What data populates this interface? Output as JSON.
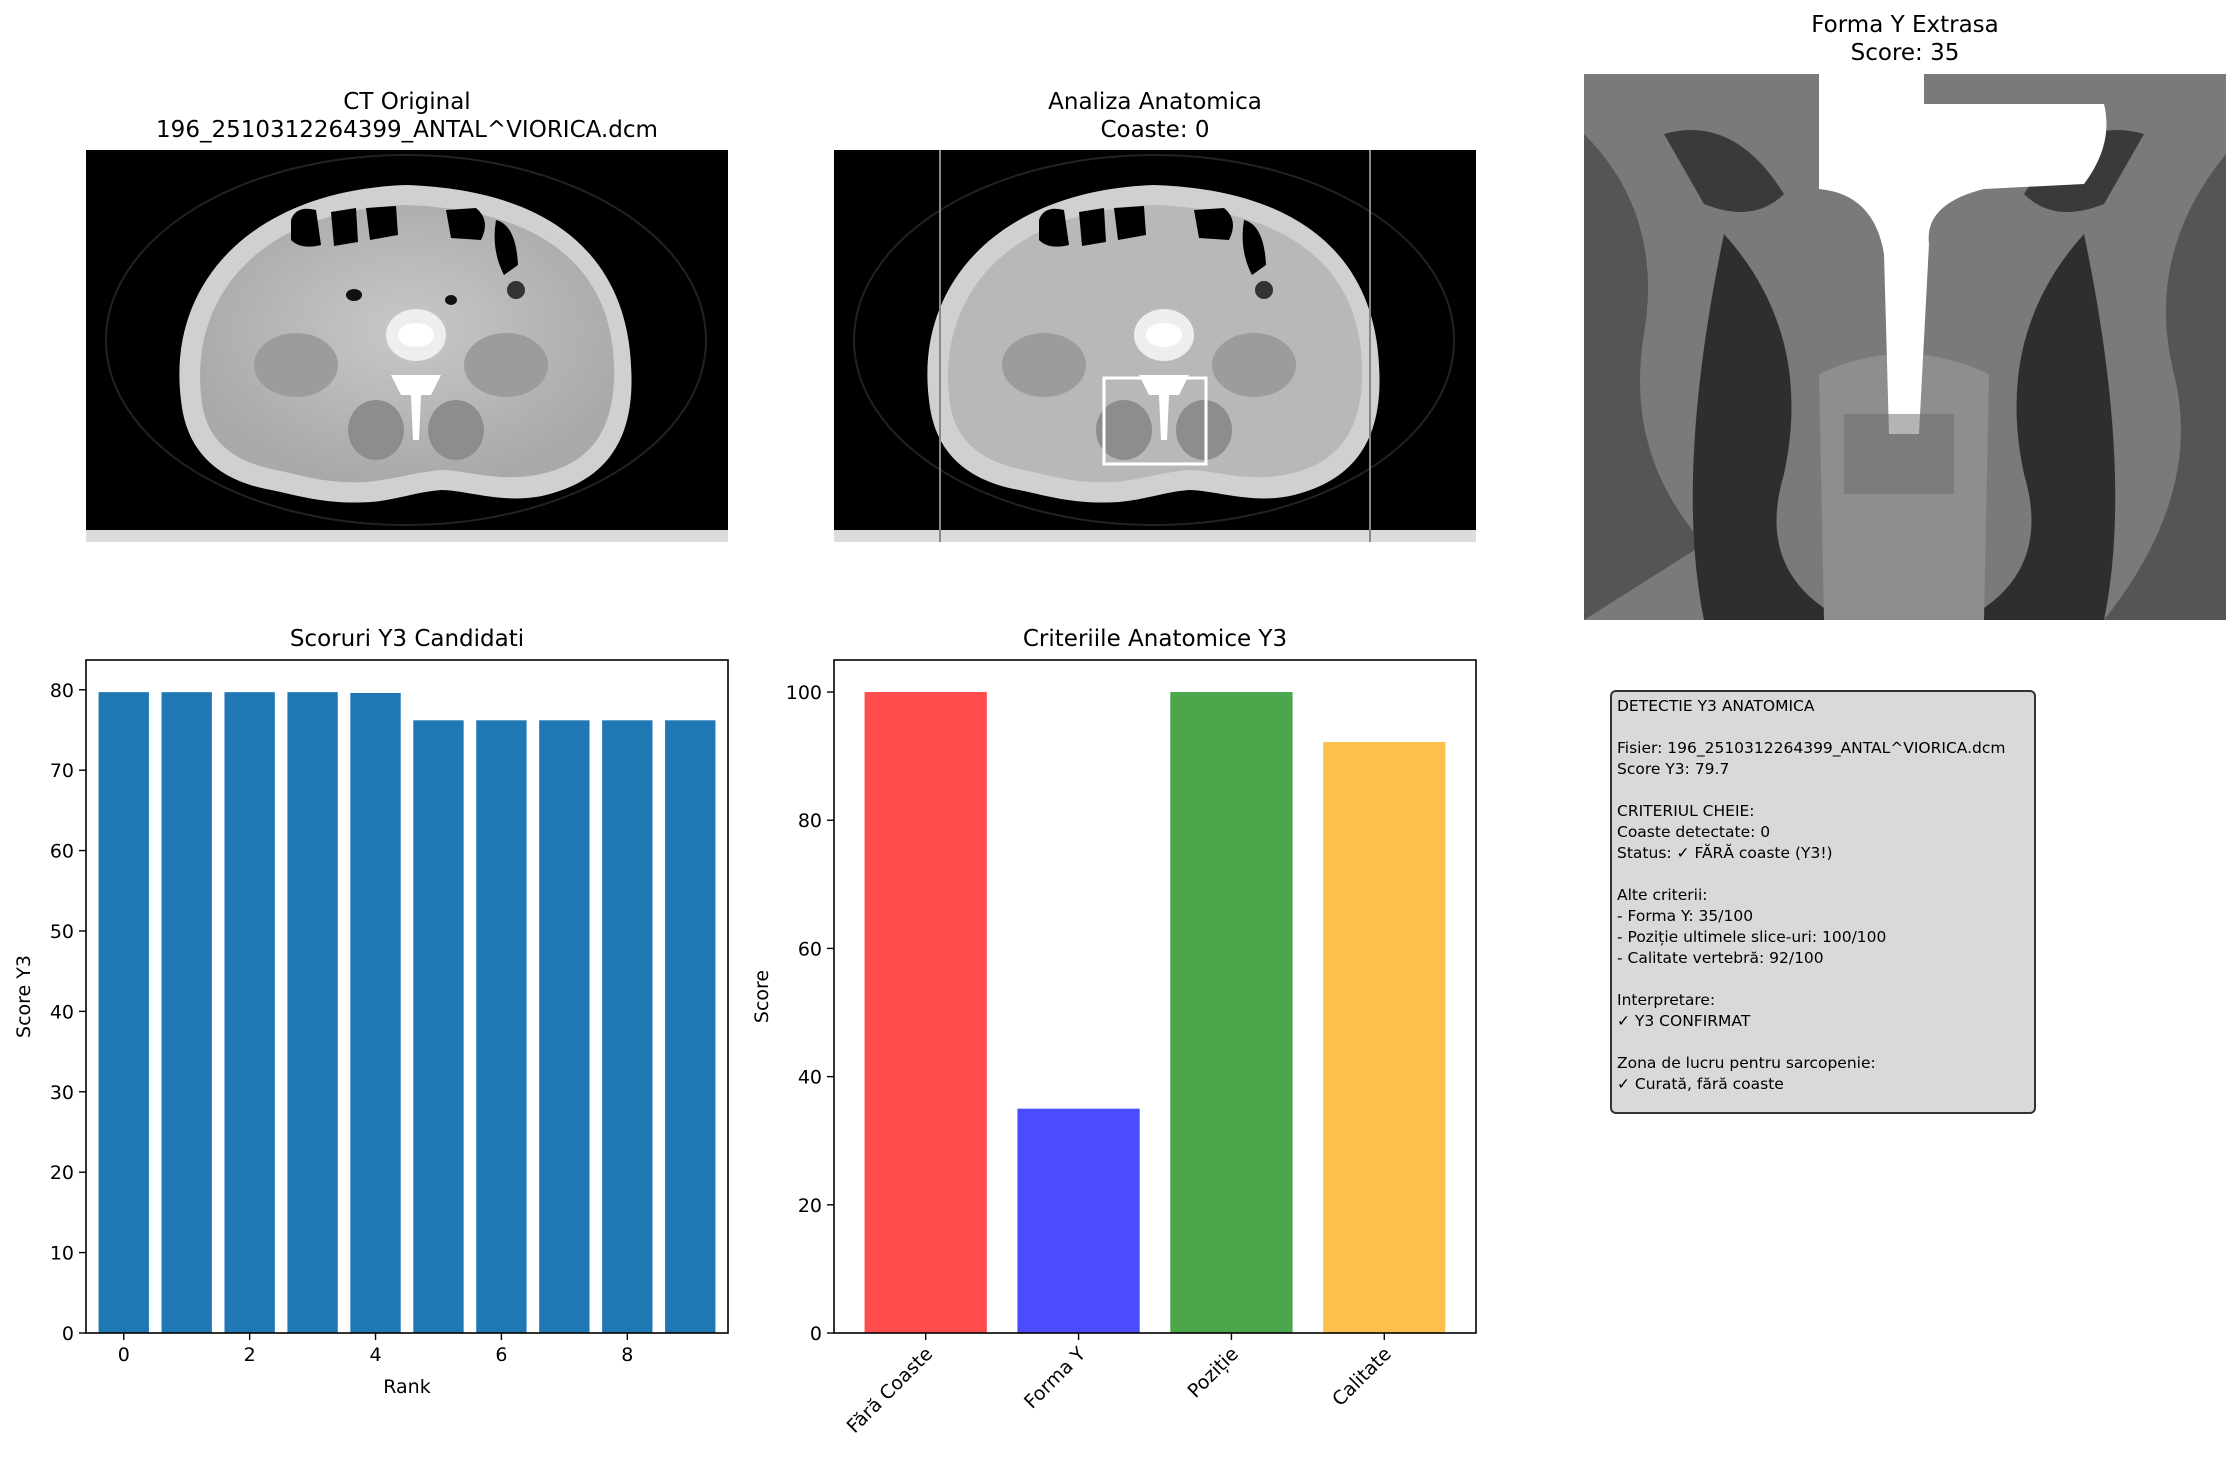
{
  "panels": {
    "ct_original": {
      "title_line1": "CT Original",
      "title_line2": "196_2510312264399_ANTAL^VIORICA.dcm"
    },
    "analiza": {
      "title_line1": "Analiza Anatomica",
      "title_line2": "Coaste: 0"
    },
    "forma_y": {
      "title_line1": "Forma Y Extrasa",
      "title_line2": "Score: 35"
    }
  },
  "chart_data": [
    {
      "type": "bar",
      "title": "Scoruri Y3 Candidati",
      "xlabel": "Rank",
      "ylabel": "Score Y3",
      "x": [
        0,
        1,
        2,
        3,
        4,
        5,
        6,
        7,
        8,
        9
      ],
      "values": [
        79.7,
        79.7,
        79.7,
        79.7,
        79.6,
        76.2,
        76.2,
        76.2,
        76.2,
        76.2
      ],
      "xticks": [
        "0",
        "2",
        "4",
        "6",
        "8"
      ],
      "yticks": [
        "0",
        "10",
        "20",
        "30",
        "40",
        "50",
        "60",
        "70",
        "80"
      ],
      "xlim": [
        -0.6,
        9.6
      ],
      "ylim": [
        0,
        83.7
      ],
      "color": "#1f77b4",
      "grid": false
    },
    {
      "type": "bar",
      "title": "Criteriile Anatomice Y3",
      "xlabel": "",
      "ylabel": "Score",
      "categories": [
        "Fără Coaste",
        "Forma Y",
        "Poziție",
        "Calitate"
      ],
      "values": [
        100,
        35,
        100,
        92.2
      ],
      "colors": [
        "#ff4c4c",
        "#4c4cff",
        "#4ca64c",
        "#ffbf4c"
      ],
      "yticks": [
        "0",
        "20",
        "40",
        "60",
        "80",
        "100"
      ],
      "ylim": [
        0,
        105
      ],
      "xtick_rotation": -45,
      "grid": false
    }
  ],
  "info_box": {
    "lines": [
      "DETECTIE Y3 ANATOMICA",
      "",
      "Fisier: 196_2510312264399_ANTAL^VIORICA.dcm",
      "Score Y3: 79.7",
      "",
      "CRITERIUL CHEIE:",
      "Coaste detectate: 0",
      "Status: ✓ FĂRĂ coaste (Y3!)",
      "",
      "Alte criterii:",
      "- Forma Y: 35/100",
      "- Poziție ultimele slice-uri: 100/100",
      "- Calitate vertebră: 92/100",
      "",
      "Interpretare:",
      "✓ Y3 CONFIRMAT",
      "",
      "Zona de lucru pentru sarcopenie:",
      "✓ Curată, fără coaste"
    ]
  }
}
